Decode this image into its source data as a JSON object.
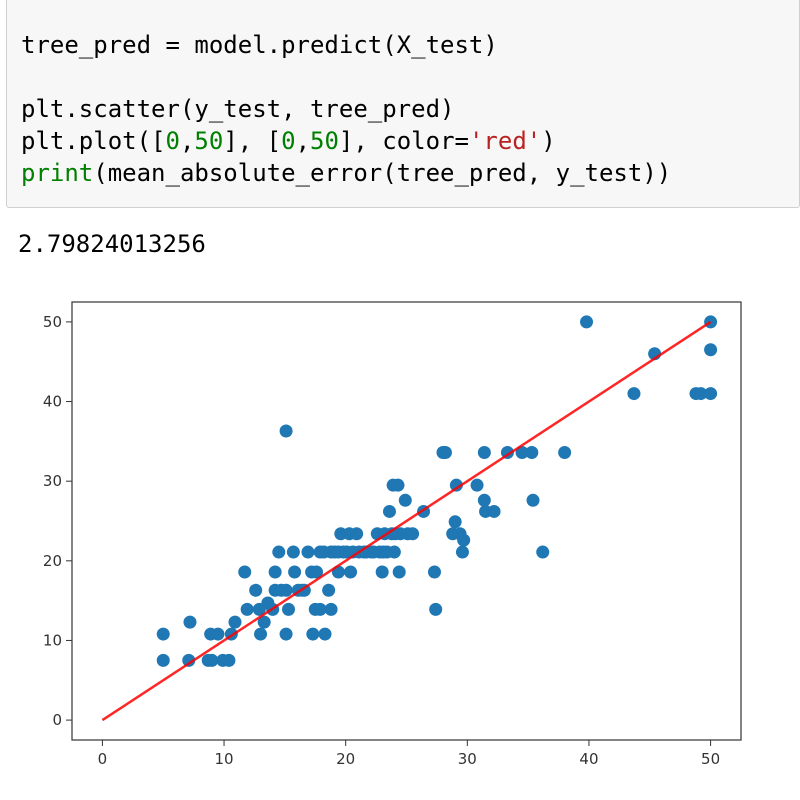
{
  "code": {
    "lines": [
      [
        {
          "t": "tree_pred = model.predict(X_test)",
          "c": ""
        }
      ],
      [],
      [
        {
          "t": "plt.scatter(y_test, tree_pred)",
          "c": ""
        }
      ],
      [
        {
          "t": "plt.plot([",
          "c": ""
        },
        {
          "t": "0",
          "c": "num"
        },
        {
          "t": ",",
          "c": ""
        },
        {
          "t": "50",
          "c": "num"
        },
        {
          "t": "], [",
          "c": ""
        },
        {
          "t": "0",
          "c": "num"
        },
        {
          "t": ",",
          "c": ""
        },
        {
          "t": "50",
          "c": "num"
        },
        {
          "t": "], color=",
          "c": ""
        },
        {
          "t": "'red'",
          "c": "str"
        },
        {
          "t": ")",
          "c": ""
        }
      ],
      [
        {
          "t": "print",
          "c": "builtin"
        },
        {
          "t": "(mean_absolute_error(tree_pred, y_test))",
          "c": ""
        }
      ]
    ]
  },
  "output": {
    "text": "2.79824013256"
  },
  "chart_data": {
    "type": "scatter",
    "xlim": [
      -2.5,
      52.5
    ],
    "ylim": [
      -2.5,
      52.5
    ],
    "xticks": [
      0,
      10,
      20,
      30,
      40,
      50
    ],
    "yticks": [
      0,
      10,
      20,
      30,
      40,
      50
    ],
    "grid": false,
    "point_color": "#1f77b4",
    "line_color": "#ff0000",
    "line": {
      "x": [
        0,
        50
      ],
      "y": [
        0,
        50
      ]
    },
    "points": [
      [
        5,
        10.8
      ],
      [
        5,
        7.5
      ],
      [
        7.2,
        12.3
      ],
      [
        7.1,
        7.5
      ],
      [
        8.7,
        7.5
      ],
      [
        9,
        7.5
      ],
      [
        8.9,
        10.8
      ],
      [
        9.5,
        10.8
      ],
      [
        9.9,
        7.5
      ],
      [
        10.4,
        7.5
      ],
      [
        10.6,
        10.8
      ],
      [
        10.9,
        12.3
      ],
      [
        11.7,
        18.6
      ],
      [
        11.9,
        13.9
      ],
      [
        12.6,
        16.3
      ],
      [
        12.9,
        13.9
      ],
      [
        13,
        10.8
      ],
      [
        13.3,
        12.3
      ],
      [
        13.6,
        14.7
      ],
      [
        14,
        13.9
      ],
      [
        14.2,
        16.3
      ],
      [
        14.2,
        18.6
      ],
      [
        14.5,
        21.1
      ],
      [
        14.7,
        16.3
      ],
      [
        15.1,
        36.3
      ],
      [
        15.1,
        16.3
      ],
      [
        15.1,
        10.8
      ],
      [
        15.3,
        13.9
      ],
      [
        15.7,
        21.1
      ],
      [
        15.8,
        18.6
      ],
      [
        16.1,
        16.3
      ],
      [
        16.4,
        16.3
      ],
      [
        16.6,
        16.3
      ],
      [
        16.9,
        21.1
      ],
      [
        17.2,
        18.6
      ],
      [
        17.3,
        10.8
      ],
      [
        17.5,
        13.9
      ],
      [
        17.6,
        18.6
      ],
      [
        17.9,
        21.1
      ],
      [
        17.9,
        13.9
      ],
      [
        18.2,
        21.1
      ],
      [
        18.3,
        10.8
      ],
      [
        18.6,
        16.3
      ],
      [
        18.8,
        21.1
      ],
      [
        18.8,
        13.9
      ],
      [
        19.1,
        21.1
      ],
      [
        19.4,
        21.1
      ],
      [
        19.4,
        18.6
      ],
      [
        19.6,
        23.4
      ],
      [
        19.8,
        21.1
      ],
      [
        20.1,
        21.1
      ],
      [
        20.3,
        23.4
      ],
      [
        20.4,
        18.6
      ],
      [
        20.6,
        21.1
      ],
      [
        20.9,
        23.4
      ],
      [
        21.1,
        21.1
      ],
      [
        21.5,
        21.1
      ],
      [
        21.7,
        21.1
      ],
      [
        22.1,
        21.1
      ],
      [
        22.3,
        21.1
      ],
      [
        22.6,
        23.4
      ],
      [
        22.8,
        21.1
      ],
      [
        23,
        18.6
      ],
      [
        23.1,
        21.1
      ],
      [
        23.2,
        23.4
      ],
      [
        23.4,
        21.1
      ],
      [
        23.6,
        26.2
      ],
      [
        23.8,
        23.4
      ],
      [
        23.9,
        29.5
      ],
      [
        24,
        21.1
      ],
      [
        24.1,
        23.4
      ],
      [
        24.3,
        29.5
      ],
      [
        24.4,
        18.6
      ],
      [
        24.5,
        23.4
      ],
      [
        24.9,
        27.6
      ],
      [
        25.1,
        23.4
      ],
      [
        25.5,
        23.4
      ],
      [
        26.4,
        26.2
      ],
      [
        27.3,
        18.6
      ],
      [
        27.4,
        13.9
      ],
      [
        28,
        33.6
      ],
      [
        28.2,
        33.6
      ],
      [
        28.8,
        23.4
      ],
      [
        29.1,
        29.5
      ],
      [
        29,
        24.9
      ],
      [
        29.4,
        23.4
      ],
      [
        29.6,
        21.1
      ],
      [
        29.7,
        22.6
      ],
      [
        30.8,
        29.5
      ],
      [
        31.4,
        33.6
      ],
      [
        31.4,
        27.6
      ],
      [
        31.5,
        26.2
      ],
      [
        32.2,
        26.2
      ],
      [
        33.3,
        33.6
      ],
      [
        34.5,
        33.6
      ],
      [
        35.3,
        33.6
      ],
      [
        35.4,
        27.6
      ],
      [
        36.2,
        21.1
      ],
      [
        38,
        33.6
      ],
      [
        39.8,
        50
      ],
      [
        43.7,
        41
      ],
      [
        45.4,
        46
      ],
      [
        48.8,
        41
      ],
      [
        49.2,
        41
      ],
      [
        50,
        50
      ],
      [
        50,
        46.5
      ],
      [
        50,
        41
      ]
    ]
  }
}
